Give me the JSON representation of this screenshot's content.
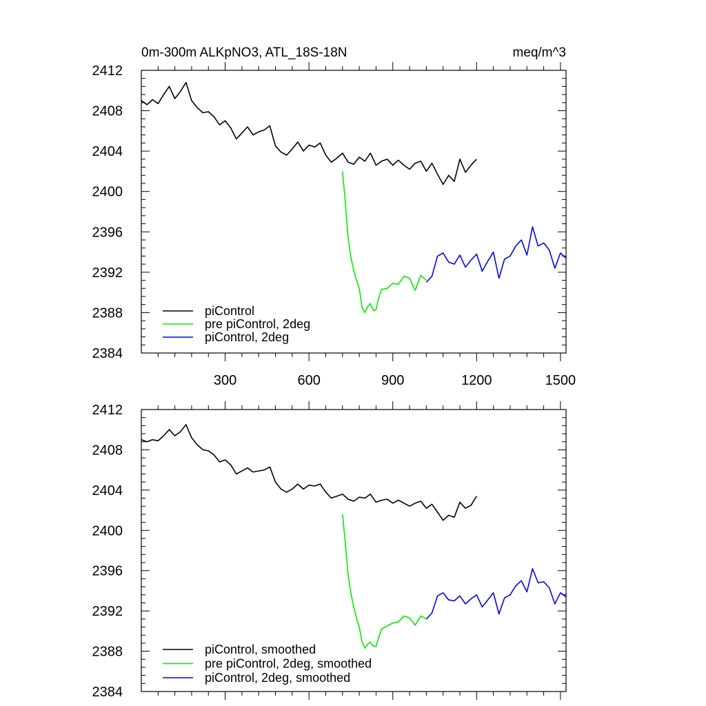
{
  "chart_data": [
    {
      "type": "line",
      "title": "0m-300m ALKpNO3, ATL_18S-18N",
      "units": "meq/m^3",
      "xlabel": "",
      "ylabel": "",
      "xlim": [
        0,
        1520
      ],
      "ylim": [
        2384,
        2412
      ],
      "xticks": [
        300,
        600,
        900,
        1200,
        1500
      ],
      "xtick_labels": [
        "300",
        "600",
        "900",
        "1200",
        "1500"
      ],
      "yticks": [
        2384,
        2388,
        2392,
        2396,
        2400,
        2404,
        2408,
        2412
      ],
      "ytick_labels": [
        "2384",
        "2388",
        "2392",
        "2396",
        "2400",
        "2404",
        "2408",
        "2412"
      ],
      "legend_position": "bottom-left",
      "series": [
        {
          "name": "piControl",
          "color": "#000000",
          "x": [
            0,
            20,
            40,
            60,
            80,
            100,
            120,
            140,
            160,
            180,
            200,
            220,
            240,
            260,
            280,
            300,
            320,
            340,
            360,
            380,
            400,
            420,
            440,
            460,
            480,
            500,
            520,
            540,
            560,
            580,
            600,
            620,
            640,
            660,
            680,
            700,
            720,
            740,
            760,
            780,
            800,
            820,
            840,
            860,
            880,
            900,
            920,
            940,
            960,
            980,
            1000,
            1020,
            1040,
            1060,
            1080,
            1100,
            1120,
            1140,
            1160,
            1180,
            1200
          ],
          "y": [
            2409,
            2408.6,
            2409.1,
            2408.7,
            2409.6,
            2410.4,
            2409.2,
            2409.9,
            2410.8,
            2409.0,
            2408.3,
            2407.8,
            2407.9,
            2407.4,
            2406.6,
            2407.0,
            2406.3,
            2405.2,
            2405.8,
            2406.4,
            2405.6,
            2405.9,
            2406.1,
            2406.5,
            2404.5,
            2403.9,
            2403.6,
            2404.2,
            2404.9,
            2404.0,
            2404.6,
            2404.4,
            2404.8,
            2403.6,
            2402.9,
            2403.3,
            2403.8,
            2402.9,
            2402.7,
            2403.4,
            2403.0,
            2403.8,
            2402.6,
            2403.0,
            2403.2,
            2402.6,
            2403.1,
            2402.6,
            2402.2,
            2402.8,
            2403.0,
            2402.0,
            2402.8,
            2401.7,
            2400.7,
            2401.6,
            2401.0,
            2403.2,
            2401.9,
            2402.6,
            2403.2
          ]
        },
        {
          "name": "pre piControl, 2deg",
          "color": "#00ee00",
          "x": [
            720,
            730,
            740,
            750,
            760,
            770,
            780,
            790,
            800,
            810,
            820,
            830,
            840,
            850,
            860,
            880,
            900,
            920,
            940,
            960,
            980,
            1000,
            1020
          ],
          "y": [
            2402.0,
            2399.0,
            2395.5,
            2393.5,
            2392.2,
            2391.2,
            2390.4,
            2388.5,
            2388.0,
            2388.6,
            2388.9,
            2388.2,
            2388.3,
            2389.5,
            2390.3,
            2390.4,
            2390.9,
            2390.8,
            2391.6,
            2391.4,
            2390.2,
            2391.7,
            2391.2
          ]
        },
        {
          "name": "piControl, 2deg",
          "color": "#0000ff",
          "x": [
            1020,
            1040,
            1060,
            1080,
            1100,
            1120,
            1140,
            1160,
            1180,
            1200,
            1220,
            1240,
            1260,
            1280,
            1300,
            1320,
            1340,
            1360,
            1380,
            1400,
            1420,
            1440,
            1460,
            1480,
            1500,
            1520
          ],
          "y": [
            2391.0,
            2391.6,
            2393.6,
            2393.9,
            2393.0,
            2392.8,
            2393.7,
            2392.5,
            2393.2,
            2393.8,
            2392.1,
            2393.1,
            2394.0,
            2391.4,
            2393.3,
            2393.6,
            2394.6,
            2395.2,
            2393.7,
            2396.5,
            2394.6,
            2394.9,
            2394.2,
            2392.4,
            2393.9,
            2393.4
          ]
        }
      ]
    },
    {
      "type": "line",
      "title": "",
      "xlabel": "",
      "ylabel": "",
      "xlim": [
        0,
        1520
      ],
      "ylim": [
        2384,
        2412
      ],
      "xticks": [
        300,
        600,
        900,
        1200,
        1500
      ],
      "xtick_labels": [],
      "yticks": [
        2384,
        2388,
        2392,
        2396,
        2400,
        2404,
        2408,
        2412
      ],
      "ytick_labels": [
        "2384",
        "2388",
        "2392",
        "2396",
        "2400",
        "2404",
        "2408",
        "2412"
      ],
      "legend_position": "bottom-left",
      "series": [
        {
          "name": "piControl, smoothed",
          "color": "#000000",
          "x": [
            0,
            20,
            40,
            60,
            80,
            100,
            120,
            140,
            160,
            180,
            200,
            220,
            240,
            260,
            280,
            300,
            320,
            340,
            360,
            380,
            400,
            420,
            440,
            460,
            480,
            500,
            520,
            540,
            560,
            580,
            600,
            620,
            640,
            660,
            680,
            700,
            720,
            740,
            760,
            780,
            800,
            820,
            840,
            860,
            880,
            900,
            920,
            940,
            960,
            980,
            1000,
            1020,
            1040,
            1060,
            1080,
            1100,
            1120,
            1140,
            1160,
            1180,
            1200
          ],
          "y": [
            2409,
            2408.8,
            2409.0,
            2408.9,
            2409.4,
            2410.0,
            2409.4,
            2409.8,
            2410.5,
            2409.2,
            2408.5,
            2408.0,
            2407.9,
            2407.5,
            2406.8,
            2407.0,
            2406.5,
            2405.6,
            2405.9,
            2406.2,
            2405.8,
            2405.9,
            2406.0,
            2406.3,
            2404.8,
            2404.1,
            2403.8,
            2404.1,
            2404.6,
            2404.1,
            2404.5,
            2404.4,
            2404.6,
            2403.8,
            2403.2,
            2403.4,
            2403.6,
            2403.1,
            2402.9,
            2403.3,
            2403.2,
            2403.6,
            2402.8,
            2403.0,
            2403.1,
            2402.7,
            2403.0,
            2402.7,
            2402.4,
            2402.7,
            2402.9,
            2402.2,
            2402.6,
            2401.8,
            2401.0,
            2401.5,
            2401.3,
            2402.8,
            2402.2,
            2402.5,
            2403.4
          ]
        },
        {
          "name": "pre piControl, 2deg, smoothed",
          "color": "#00ee00",
          "x": [
            720,
            730,
            740,
            750,
            760,
            770,
            780,
            790,
            800,
            810,
            820,
            830,
            840,
            850,
            860,
            880,
            900,
            920,
            940,
            960,
            980,
            1000,
            1020
          ],
          "y": [
            2401.6,
            2398.8,
            2395.6,
            2393.8,
            2392.4,
            2391.3,
            2390.4,
            2388.9,
            2388.3,
            2388.7,
            2388.9,
            2388.5,
            2388.5,
            2389.4,
            2390.2,
            2390.5,
            2390.8,
            2390.9,
            2391.5,
            2391.3,
            2390.6,
            2391.5,
            2391.2
          ]
        },
        {
          "name": "piControl, 2deg, smoothed",
          "color": "#0000ff",
          "x": [
            1020,
            1040,
            1060,
            1080,
            1100,
            1120,
            1140,
            1160,
            1180,
            1200,
            1220,
            1240,
            1260,
            1280,
            1300,
            1320,
            1340,
            1360,
            1380,
            1400,
            1420,
            1440,
            1460,
            1480,
            1500,
            1520
          ],
          "y": [
            2391.2,
            2391.8,
            2393.5,
            2393.8,
            2393.1,
            2393.0,
            2393.5,
            2392.7,
            2393.2,
            2393.6,
            2392.4,
            2393.1,
            2393.8,
            2391.7,
            2393.3,
            2393.6,
            2394.5,
            2395.0,
            2393.9,
            2396.2,
            2394.8,
            2394.9,
            2394.3,
            2392.7,
            2393.8,
            2393.4
          ]
        }
      ]
    }
  ]
}
